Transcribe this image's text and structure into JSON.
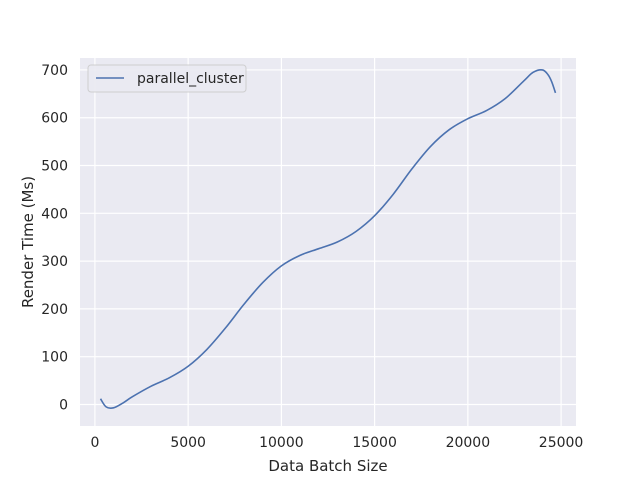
{
  "chart_data": {
    "type": "line",
    "title": "",
    "xlabel": "Data Batch Size",
    "ylabel": "Render Time (Ms)",
    "xlim": [
      -800,
      25800
    ],
    "ylim": [
      -45,
      725
    ],
    "xticks": [
      0,
      5000,
      10000,
      15000,
      20000,
      25000
    ],
    "yticks": [
      0,
      100,
      200,
      300,
      400,
      500,
      600,
      700
    ],
    "grid": true,
    "legend": {
      "placement": "top-left"
    },
    "series": [
      {
        "name": "parallel_cluster",
        "color": "#4c72b0",
        "x": [
          300,
          600,
          1000,
          1500,
          2000,
          3000,
          4000,
          5000,
          6000,
          7000,
          8000,
          9000,
          10000,
          11000,
          12000,
          13000,
          14000,
          15000,
          16000,
          17000,
          18000,
          19000,
          20000,
          21000,
          22000,
          23000,
          23500,
          24000,
          24300,
          24500,
          24700
        ],
        "y": [
          12,
          -5,
          -7,
          3,
          16,
          38,
          56,
          80,
          115,
          160,
          210,
          255,
          290,
          312,
          326,
          340,
          362,
          395,
          440,
          493,
          540,
          575,
          598,
          615,
          640,
          677,
          695,
          700,
          690,
          675,
          652
        ]
      }
    ]
  }
}
